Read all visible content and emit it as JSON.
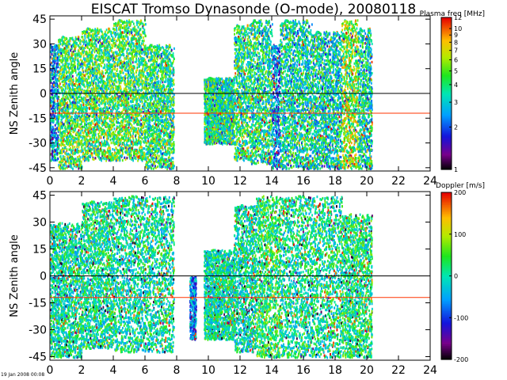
{
  "title": "EISCAT Tromso Dynasonde (O-mode),  20080118",
  "footer": "19 Jan 2008 00:08",
  "colors": {
    "black_line": "#000000",
    "reference_line": "#ff3300"
  },
  "chart_data": [
    {
      "type": "scatter",
      "name": "top-panel",
      "ylabel": "NS Zenith angle",
      "xlim": [
        0,
        24
      ],
      "ylim": [
        -47,
        47
      ],
      "xticks": [
        0,
        2,
        4,
        6,
        8,
        10,
        12,
        14,
        16,
        18,
        20,
        22,
        24
      ],
      "yticks": [
        45,
        30,
        15,
        0,
        -15,
        -30,
        -45
      ],
      "hlines": [
        0,
        -12
      ],
      "colorbar": {
        "title": "Plasma freq [MHz]",
        "scale": "log",
        "range": [
          1,
          12
        ],
        "ticks": [
          1,
          2,
          3,
          4,
          5,
          6,
          7,
          8,
          9,
          10,
          12
        ]
      },
      "activity": [
        {
          "t": [
            0,
            0.5
          ],
          "lo": -40,
          "hi": 30,
          "v": 2.5
        },
        {
          "t": [
            0.5,
            2
          ],
          "lo": -45,
          "hi": 35,
          "v": 4.5
        },
        {
          "t": [
            2,
            4
          ],
          "lo": -40,
          "hi": 40,
          "v": 4.5
        },
        {
          "t": [
            4,
            6
          ],
          "lo": -40,
          "hi": 45,
          "v": 4.5
        },
        {
          "t": [
            6,
            7.8
          ],
          "lo": -45,
          "hi": 30,
          "v": 4
        },
        {
          "t": [
            9.7,
            11.6
          ],
          "lo": -30,
          "hi": 10,
          "v": 3.8
        },
        {
          "t": [
            11.6,
            12.6
          ],
          "lo": -40,
          "hi": 42,
          "v": 4
        },
        {
          "t": [
            12.6,
            14
          ],
          "lo": -42,
          "hi": 45,
          "v": 3.8
        },
        {
          "t": [
            14,
            14.5
          ],
          "lo": -45,
          "hi": 30,
          "v": 2.3
        },
        {
          "t": [
            14.5,
            16.5
          ],
          "lo": -45,
          "hi": 45,
          "v": 3.5
        },
        {
          "t": [
            16.5,
            18.4
          ],
          "lo": -45,
          "hi": 38,
          "v": 3.4
        },
        {
          "t": [
            18.4,
            19.4
          ],
          "lo": -45,
          "hi": 45,
          "v": 5.5
        },
        {
          "t": [
            19.4,
            20.3
          ],
          "lo": -45,
          "hi": 40,
          "v": 3.5
        }
      ]
    },
    {
      "type": "scatter",
      "name": "bottom-panel",
      "ylabel": "NS Zenith angle",
      "xlim": [
        0,
        24
      ],
      "ylim": [
        -47,
        47
      ],
      "xticks": [
        0,
        2,
        4,
        6,
        8,
        10,
        12,
        14,
        16,
        18,
        20,
        22,
        24
      ],
      "yticks": [
        45,
        30,
        15,
        0,
        -15,
        -30,
        -45
      ],
      "hlines": [
        0,
        -12
      ],
      "colorbar": {
        "title": "Doppler [m/s]",
        "scale": "linear",
        "range": [
          -200,
          200
        ],
        "ticks": [
          200,
          100,
          0,
          -100,
          -200
        ]
      },
      "activity": [
        {
          "t": [
            0,
            2
          ],
          "lo": -45,
          "hi": 30,
          "v": 5
        },
        {
          "t": [
            2,
            4
          ],
          "lo": -40,
          "hi": 42,
          "v": 10
        },
        {
          "t": [
            4,
            7.8
          ],
          "lo": -42,
          "hi": 45,
          "v": 5
        },
        {
          "t": [
            8.8,
            9.2
          ],
          "lo": -35,
          "hi": 0,
          "v": -60
        },
        {
          "t": [
            9.7,
            11.6
          ],
          "lo": -35,
          "hi": 15,
          "v": 5
        },
        {
          "t": [
            11.6,
            13
          ],
          "lo": -42,
          "hi": 40,
          "v": 0
        },
        {
          "t": [
            13,
            14.5
          ],
          "lo": -45,
          "hi": 45,
          "v": 30
        },
        {
          "t": [
            14.5,
            18.4
          ],
          "lo": -45,
          "hi": 45,
          "v": 10
        },
        {
          "t": [
            18.4,
            20.3
          ],
          "lo": -45,
          "hi": 35,
          "v": 20
        }
      ]
    }
  ]
}
